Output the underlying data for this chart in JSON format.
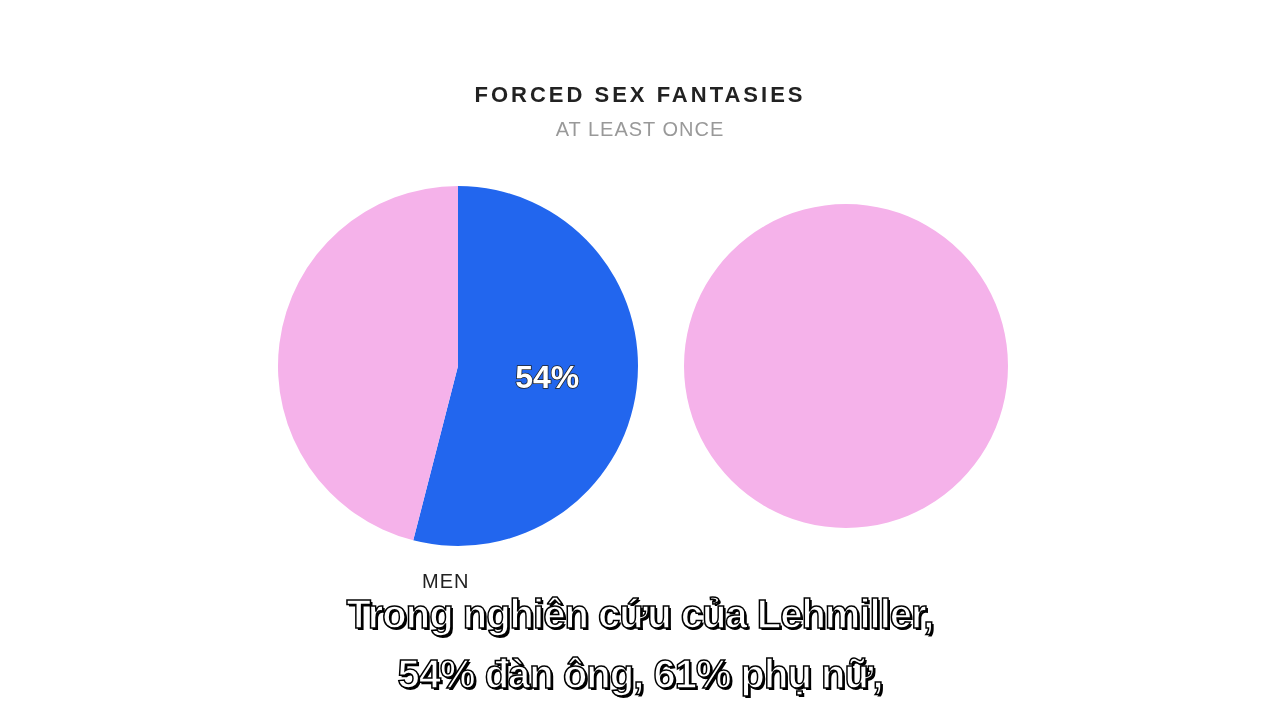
{
  "chart_data": [
    {
      "type": "pie",
      "title": "FORCED SEX FANTASIES",
      "subtitle": "AT LEAST ONCE",
      "xlabel": "MEN",
      "categories": [
        null,
        null
      ],
      "values": [
        54,
        46
      ],
      "colors": [
        "#2266ee",
        "#f5b2ea"
      ],
      "value_labels": [
        "54%",
        null
      ],
      "annotations": [
        "Trong nghiên cứu của Lehmiller,",
        "54% đàn ông, 61% phụ nữ,"
      ]
    },
    {
      "type": "pie",
      "categories": [
        null
      ],
      "values": [
        100
      ],
      "colors": [
        "#f5b2ea"
      ]
    }
  ]
}
